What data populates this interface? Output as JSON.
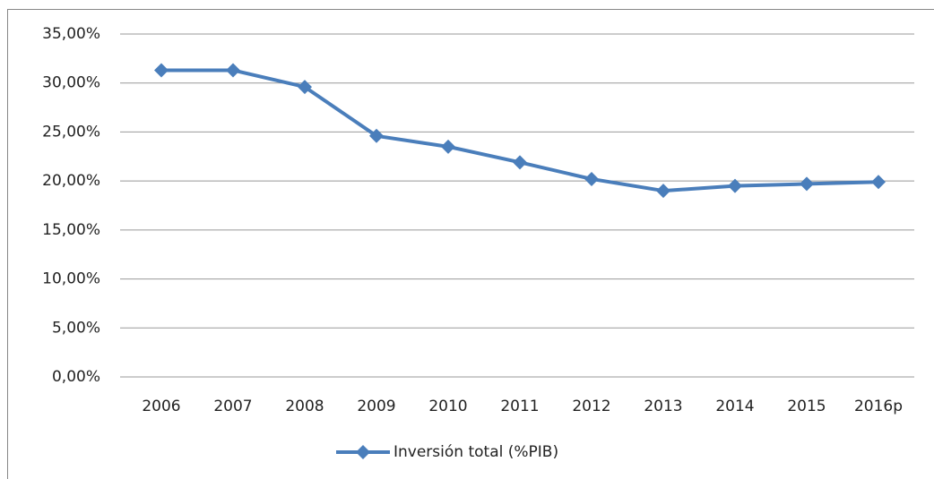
{
  "chart_data": {
    "type": "line",
    "categories": [
      "2006",
      "2007",
      "2008",
      "2009",
      "2010",
      "2011",
      "2012",
      "2013",
      "2014",
      "2015",
      "2016p"
    ],
    "series": [
      {
        "name": "Inversión total (%PIB)",
        "color": "#4a7ebb",
        "values": [
          31.3,
          31.3,
          29.6,
          24.6,
          23.5,
          21.9,
          20.2,
          19.0,
          19.5,
          19.7,
          19.9
        ]
      }
    ],
    "ylim": [
      0,
      35
    ],
    "yticks": [
      {
        "value": 0,
        "label": "0,00%"
      },
      {
        "value": 5,
        "label": "5,00%"
      },
      {
        "value": 10,
        "label": "10,00%"
      },
      {
        "value": 15,
        "label": "15,00%"
      },
      {
        "value": 20,
        "label": "20,00%"
      },
      {
        "value": 25,
        "label": "25,00%"
      },
      {
        "value": 30,
        "label": "30,00%"
      },
      {
        "value": 35,
        "label": "35,00%"
      }
    ],
    "grid": true,
    "legend": "bottom"
  }
}
